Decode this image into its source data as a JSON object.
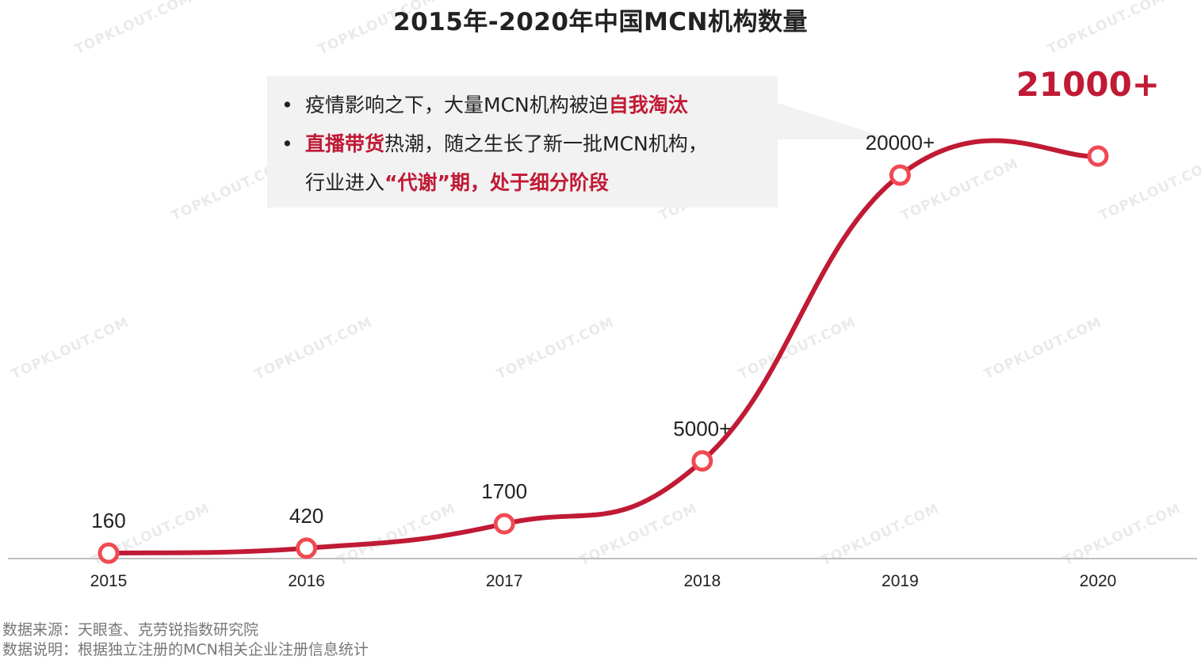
{
  "title": "2015年-2020年中国MCN机构数量",
  "callout": {
    "bullet_symbol": "•",
    "line1_prefix": "疫情影响之下，大量MCN机构被迫",
    "line1_highlight": "自我淘汰",
    "line2_highlight": "直播带货",
    "line2_suffix": "热潮，随之生长了新一批MCN机构，",
    "line3_prefix": "行业进入",
    "line3_highlight": "“代谢”期，处于细分阶段"
  },
  "highlight_value": "21000+",
  "source_line": "数据来源：天眼查、克劳锐指数研究院",
  "note_line": "数据说明：根据独立注册的MCN相关企业注册信息统计",
  "watermark_text": "TOPKLOUT.COM",
  "colors": {
    "line": "#c01a35",
    "marker_stroke": "#f04a52",
    "highlight": "#c01a35",
    "callout_bg": "#f2f2f2",
    "axis": "#bfbfbf"
  },
  "chart_data": {
    "type": "line",
    "categories": [
      "2015",
      "2016",
      "2017",
      "2018",
      "2019",
      "2020"
    ],
    "values": [
      160,
      420,
      1700,
      5000,
      20000,
      21000
    ],
    "data_labels": [
      "160",
      "420",
      "1700",
      "5000+",
      "20000+",
      ""
    ],
    "grid": false,
    "smooth": true
  }
}
